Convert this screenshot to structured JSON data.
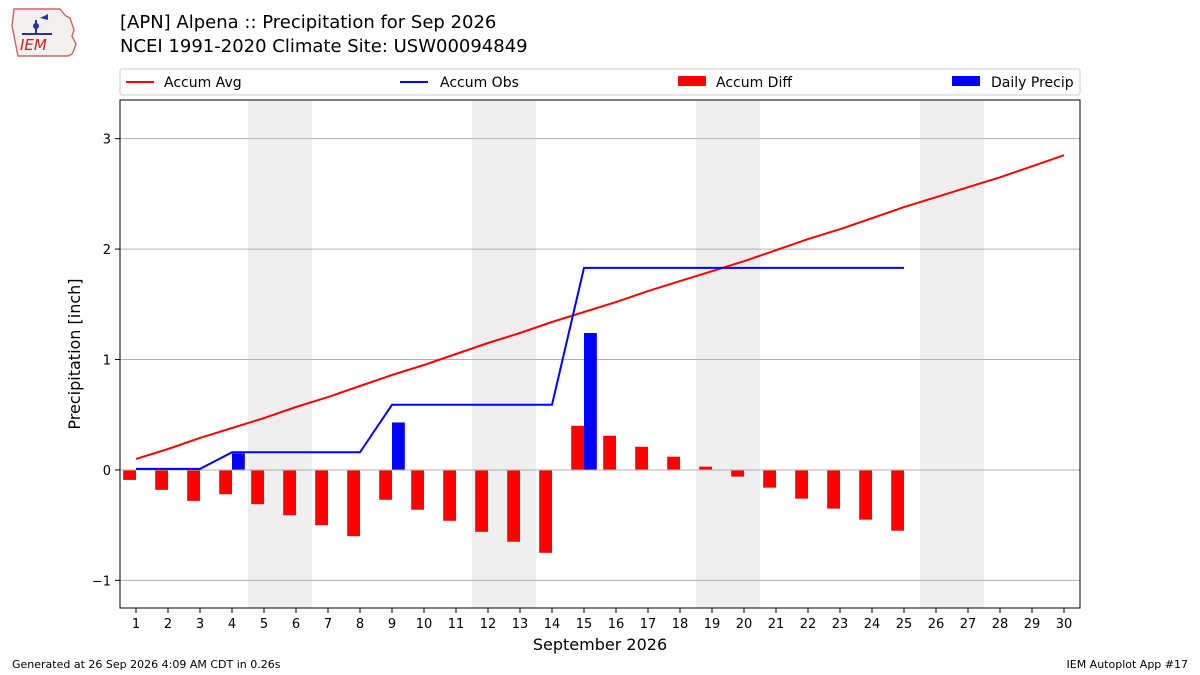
{
  "header": {
    "title_line1": "[APN] Alpena :: Precipitation for Sep 2026",
    "title_line2": "NCEI 1991-2020 Climate Site: USW00094849",
    "logo_text": "IEM"
  },
  "footer": {
    "generated": "Generated at 26 Sep 2026 4:09 AM CDT in 0.26s",
    "app": "IEM Autoplot App #17"
  },
  "colors": {
    "accum_avg": "#ff0000",
    "accum_obs": "#0000ff",
    "accum_diff": "#ff0000",
    "daily_precip": "#0000ff",
    "weekend_shade": "#eeeeee",
    "grid": "#b0b0b0"
  },
  "chart_data": {
    "type": "bar",
    "xlabel": "September 2026",
    "ylabel": "Precipitation [inch]",
    "ylim": [
      -1.25,
      3.35
    ],
    "yticks": [
      -1,
      0,
      1,
      2,
      3
    ],
    "ytick_labels": [
      "−1",
      "0",
      "1",
      "2",
      "3"
    ],
    "grid": "horizontal",
    "legend_placement": "top, above plot",
    "legend": [
      "Accum Avg",
      "Accum Obs",
      "Accum Diff",
      "Daily Precip"
    ],
    "weekend_days": [
      5,
      6,
      12,
      13,
      19,
      20,
      26,
      27
    ],
    "days": [
      1,
      2,
      3,
      4,
      5,
      6,
      7,
      8,
      9,
      10,
      11,
      12,
      13,
      14,
      15,
      16,
      17,
      18,
      19,
      20,
      21,
      22,
      23,
      24,
      25,
      26,
      27,
      28,
      29,
      30
    ],
    "series": [
      {
        "name": "Accum Avg",
        "type": "line",
        "values": [
          0.1,
          0.19,
          0.29,
          0.38,
          0.47,
          0.57,
          0.66,
          0.76,
          0.86,
          0.95,
          1.05,
          1.15,
          1.24,
          1.34,
          1.43,
          1.52,
          1.62,
          1.71,
          1.8,
          1.89,
          1.99,
          2.09,
          2.18,
          2.28,
          2.38,
          2.47,
          2.56,
          2.65,
          2.75,
          2.85
        ]
      },
      {
        "name": "Accum Obs",
        "type": "line",
        "values": [
          0.01,
          0.01,
          0.01,
          0.16,
          0.16,
          0.16,
          0.16,
          0.16,
          0.59,
          0.59,
          0.59,
          0.59,
          0.59,
          0.59,
          1.83,
          1.83,
          1.83,
          1.83,
          1.83,
          1.83,
          1.83,
          1.83,
          1.83,
          1.83,
          1.83
        ]
      },
      {
        "name": "Accum Diff",
        "type": "bar",
        "values": [
          -0.09,
          -0.18,
          -0.28,
          -0.22,
          -0.31,
          -0.41,
          -0.5,
          -0.6,
          -0.27,
          -0.36,
          -0.46,
          -0.56,
          -0.65,
          -0.75,
          0.4,
          0.31,
          0.21,
          0.12,
          0.03,
          -0.06,
          -0.16,
          -0.26,
          -0.35,
          -0.45,
          -0.55
        ]
      },
      {
        "name": "Daily Precip",
        "type": "bar",
        "values": [
          0.01,
          0,
          0,
          0.15,
          0,
          0,
          0,
          0,
          0.43,
          0,
          0,
          0,
          0,
          0,
          1.24,
          0,
          0,
          0,
          0,
          0,
          0,
          0,
          0,
          0,
          0
        ]
      }
    ]
  }
}
